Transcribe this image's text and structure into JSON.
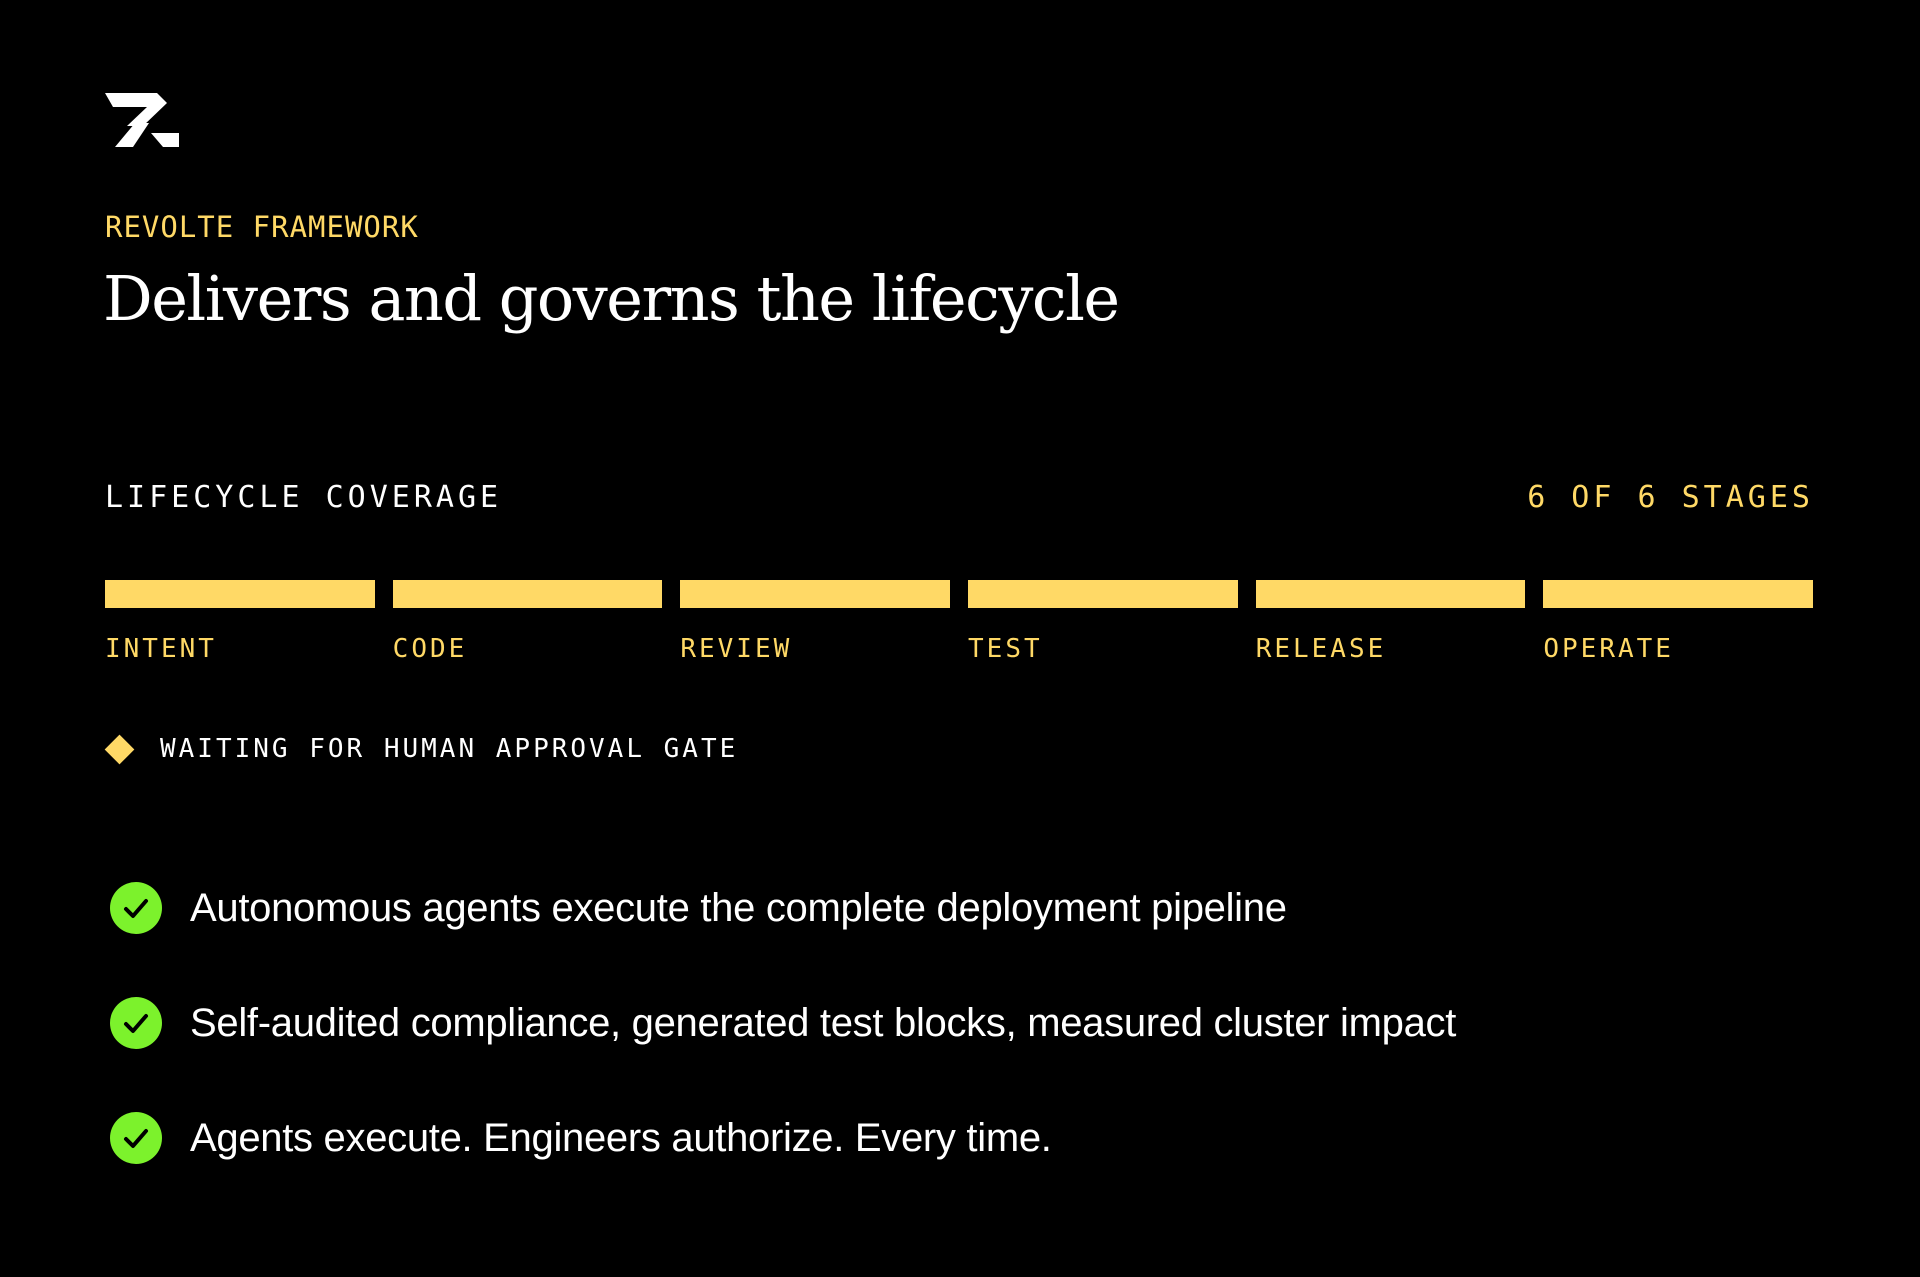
{
  "brand": {
    "logo_icon": "revolte-logo-icon",
    "accent_color": "#ffd966",
    "check_color": "#7cf22c",
    "background_color": "#000000"
  },
  "header": {
    "eyebrow": "REVOLTE FRAMEWORK",
    "title": "Delivers and governs the lifecycle"
  },
  "coverage": {
    "label": "LIFECYCLE COVERAGE",
    "count_text": "6 OF 6 STAGES",
    "completed": 6,
    "total": 6,
    "stages": [
      {
        "label": "INTENT",
        "complete": true
      },
      {
        "label": "CODE",
        "complete": true
      },
      {
        "label": "REVIEW",
        "complete": true
      },
      {
        "label": "TEST",
        "complete": true
      },
      {
        "label": "RELEASE",
        "complete": true
      },
      {
        "label": "OPERATE",
        "complete": true
      }
    ]
  },
  "status": {
    "icon": "diamond-icon",
    "text": "WAITING FOR HUMAN APPROVAL GATE"
  },
  "bullets": [
    {
      "icon": "check-circle-icon",
      "text": "Autonomous agents execute the complete deployment pipeline"
    },
    {
      "icon": "check-circle-icon",
      "text": "Self-audited compliance, generated test blocks, measured cluster impact"
    },
    {
      "icon": "check-circle-icon",
      "text": "Agents execute. Engineers authorize. Every time."
    }
  ]
}
